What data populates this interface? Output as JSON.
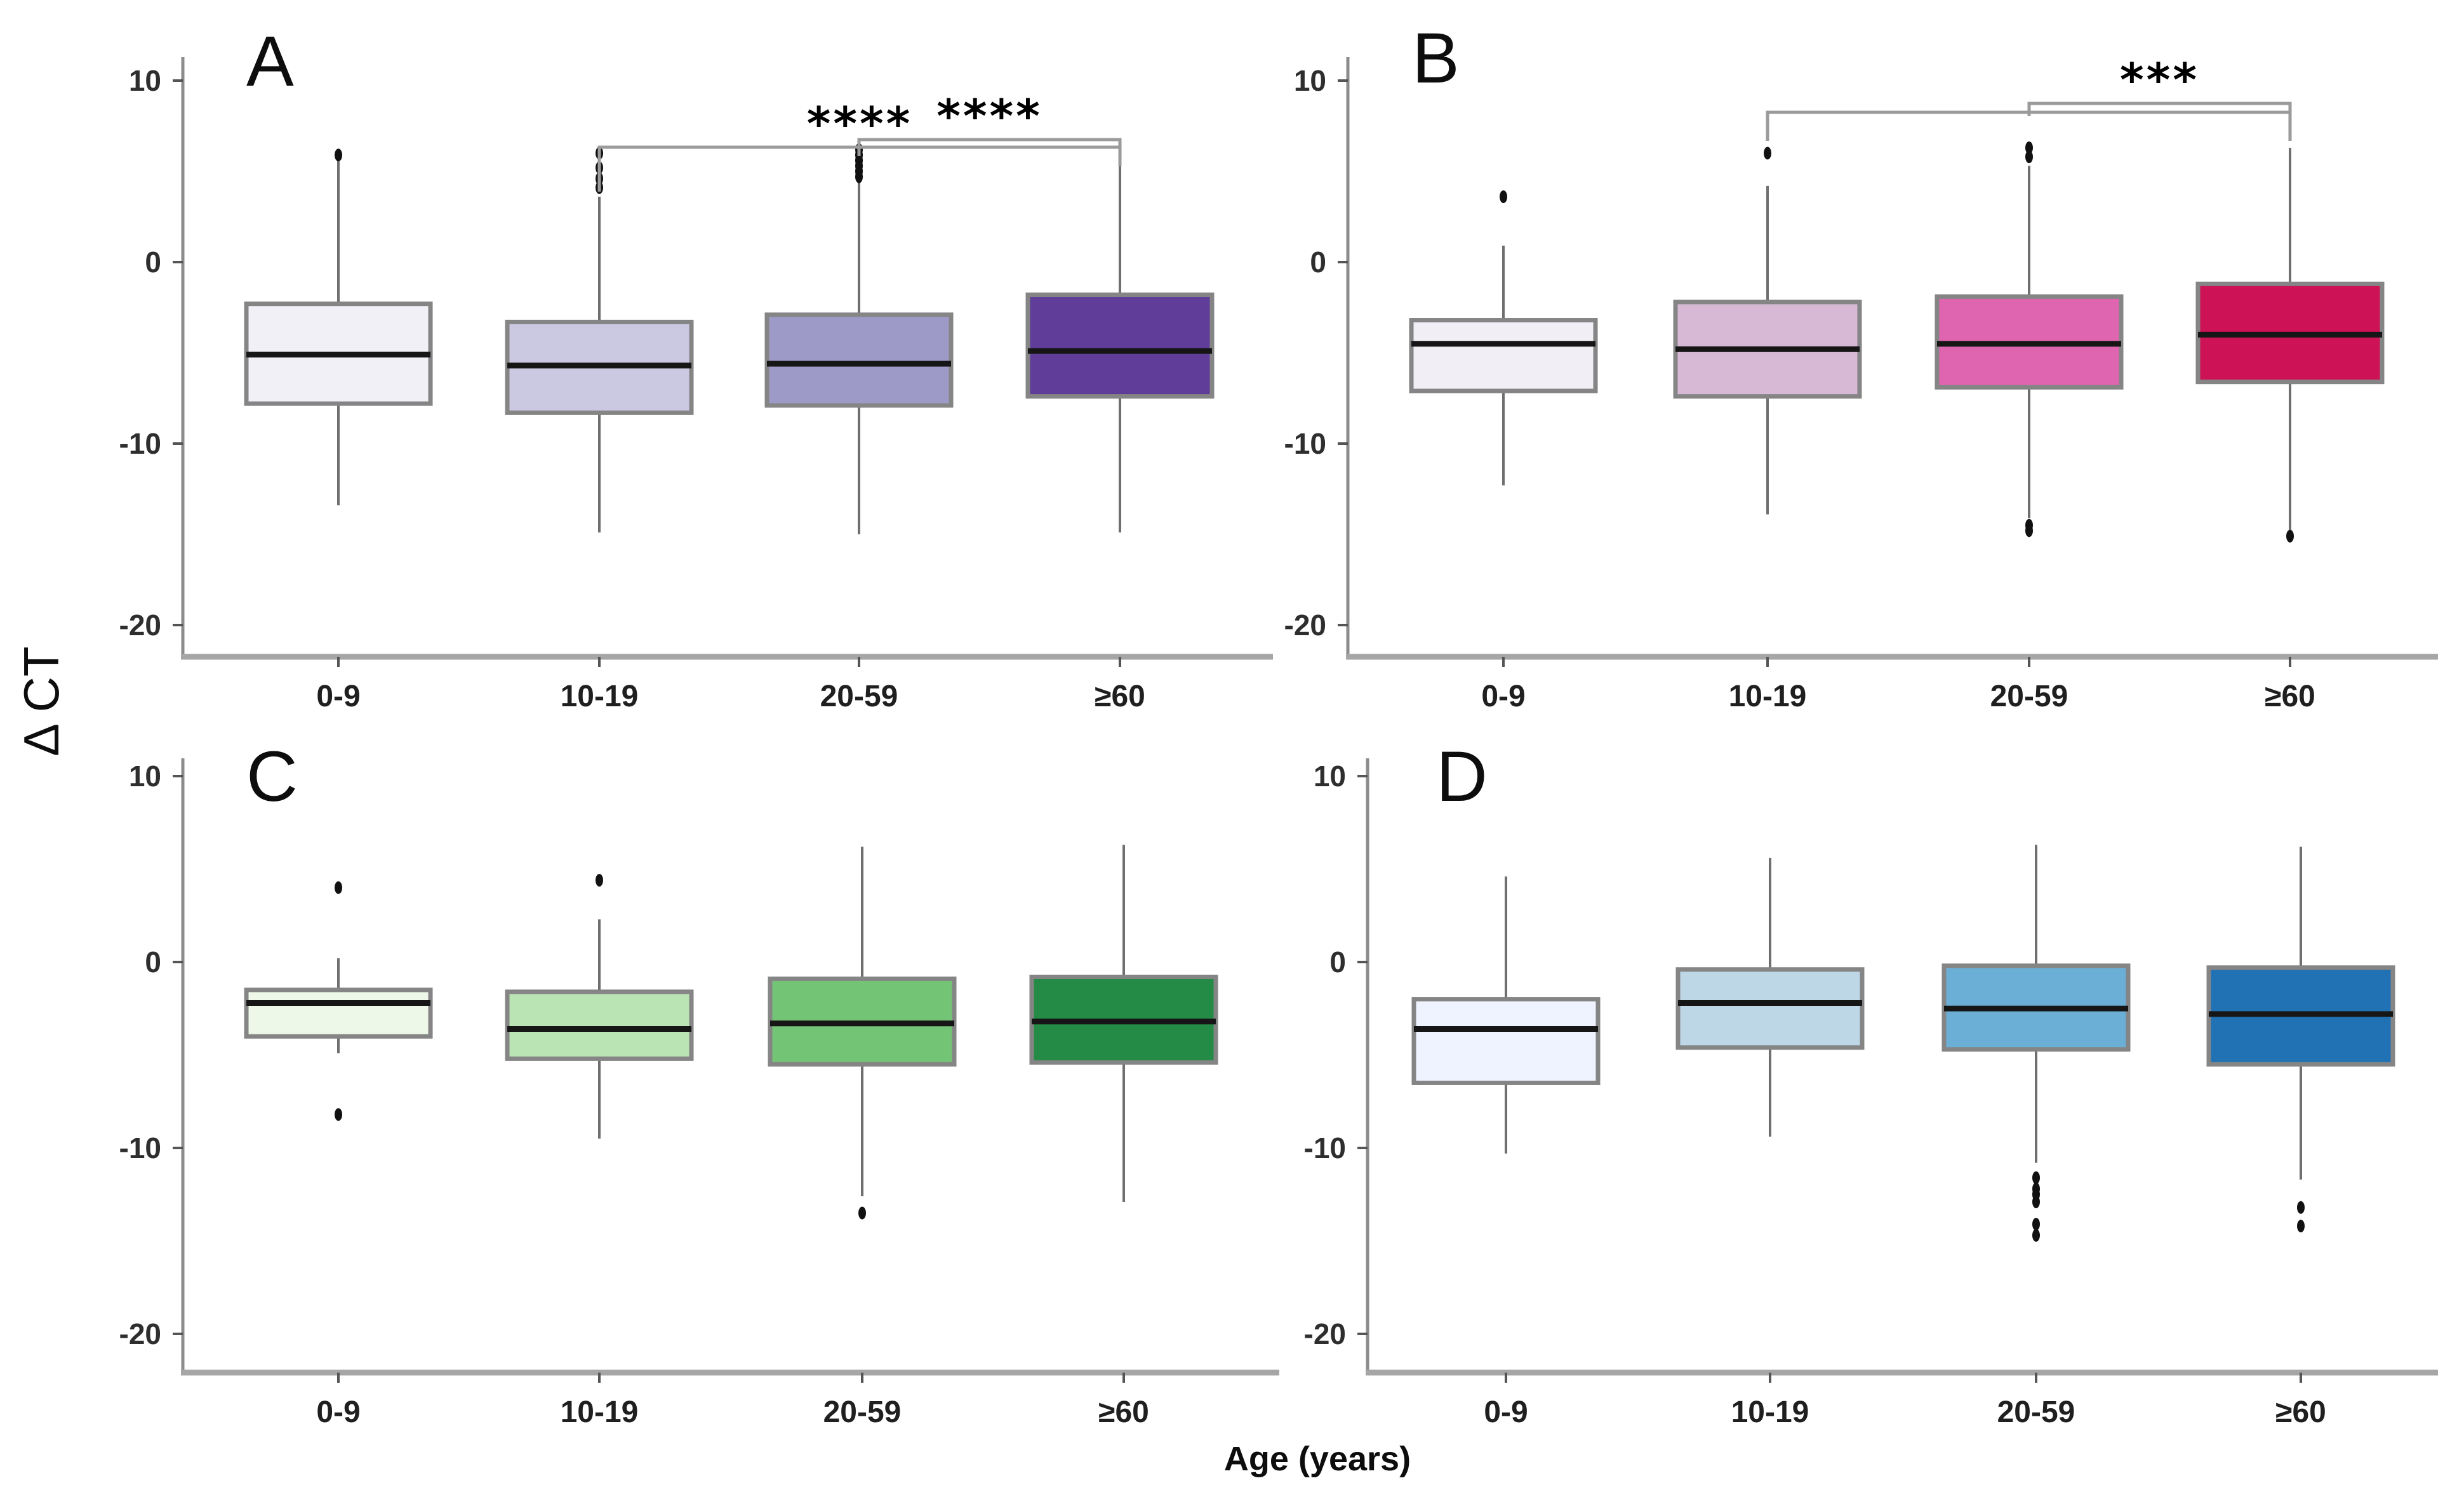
{
  "figure": {
    "ylabel": "Δ CT",
    "xlabel": "Age (years)",
    "y_ticks": [
      10,
      0,
      -10,
      -20
    ],
    "categories": [
      "0-9",
      "10-19",
      "20-59",
      "≥60"
    ]
  },
  "chart_data": [
    {
      "type": "box",
      "panel": "A",
      "ylabel": "Δ CT",
      "xlabel": "Age (years)",
      "ylim": [
        -22,
        12
      ],
      "grid": false,
      "categories": [
        "0-9",
        "10-19",
        "20-59",
        "≥60"
      ],
      "colors": [
        "#f2f0f7",
        "#cbc9e2",
        "#9e9ac8",
        "#5f3d99"
      ],
      "boxes": [
        {
          "category": "0-9",
          "whisker_low": -13.4,
          "q1": -7.8,
          "median": -5.1,
          "q3": -2.3,
          "whisker_high": 5.6,
          "outliers_high": [
            5.9
          ],
          "outliers_low": []
        },
        {
          "category": "10-19",
          "whisker_low": -14.9,
          "q1": -8.3,
          "median": -5.7,
          "q3": -3.3,
          "whisker_high": 3.6,
          "outliers_high": [
            4.1,
            4.6,
            5.2,
            6.0
          ],
          "outliers_low": []
        },
        {
          "category": "20-59",
          "whisker_low": -15.0,
          "q1": -7.9,
          "median": -5.6,
          "q3": -2.9,
          "whisker_high": 4.4,
          "outliers_high": [
            4.7,
            5.0,
            5.3,
            5.6,
            5.9,
            6.2
          ],
          "outliers_low": []
        },
        {
          "category": "≥60",
          "whisker_low": -14.9,
          "q1": -7.4,
          "median": -4.9,
          "q3": -1.8,
          "whisker_high": 6.1,
          "outliers_high": [],
          "outliers_low": []
        }
      ],
      "significance": [
        {
          "from": "10-19",
          "to": "≥60",
          "label": "****"
        },
        {
          "from": "20-59",
          "to": "≥60",
          "label": "****"
        }
      ]
    },
    {
      "type": "box",
      "panel": "B",
      "ylabel": "Δ CT",
      "xlabel": "Age (years)",
      "ylim": [
        -22,
        12
      ],
      "grid": false,
      "categories": [
        "0-9",
        "10-19",
        "20-59",
        "≥60"
      ],
      "colors": [
        "#f1eef6",
        "#d7b9d5",
        "#df65b0",
        "#ce1256"
      ],
      "boxes": [
        {
          "category": "0-9",
          "whisker_low": -12.3,
          "q1": -7.1,
          "median": -4.5,
          "q3": -3.2,
          "whisker_high": 0.9,
          "outliers_high": [
            3.6
          ],
          "outliers_low": []
        },
        {
          "category": "10-19",
          "whisker_low": -13.9,
          "q1": -7.4,
          "median": -4.8,
          "q3": -2.2,
          "whisker_high": 4.2,
          "outliers_high": [
            6.0
          ],
          "outliers_low": []
        },
        {
          "category": "20-59",
          "whisker_low": -14.1,
          "q1": -6.9,
          "median": -4.5,
          "q3": -1.9,
          "whisker_high": 5.3,
          "outliers_high": [
            5.8,
            6.3
          ],
          "outliers_low": [
            -14.5,
            -14.8
          ]
        },
        {
          "category": "≥60",
          "whisker_low": -14.8,
          "q1": -6.6,
          "median": -4.0,
          "q3": -1.2,
          "whisker_high": 6.3,
          "outliers_high": [],
          "outliers_low": [
            -15.1
          ]
        }
      ],
      "significance": [
        {
          "from": "10-19",
          "to": "≥60",
          "label": ""
        },
        {
          "from": "20-59",
          "to": "≥60",
          "label": "***"
        }
      ]
    },
    {
      "type": "box",
      "panel": "C",
      "ylabel": "Δ CT",
      "xlabel": "Age (years)",
      "ylim": [
        -22,
        12
      ],
      "grid": false,
      "categories": [
        "0-9",
        "10-19",
        "20-59",
        "≥60"
      ],
      "colors": [
        "#edf8e9",
        "#bae4b3",
        "#74c476",
        "#238b45"
      ],
      "boxes": [
        {
          "category": "0-9",
          "whisker_low": -4.9,
          "q1": -4.0,
          "median": -2.2,
          "q3": -1.5,
          "whisker_high": 0.2,
          "outliers_high": [
            4.0
          ],
          "outliers_low": [
            -8.2
          ]
        },
        {
          "category": "10-19",
          "whisker_low": -9.5,
          "q1": -5.2,
          "median": -3.6,
          "q3": -1.6,
          "whisker_high": 2.3,
          "outliers_high": [
            4.4
          ],
          "outliers_low": []
        },
        {
          "category": "20-59",
          "whisker_low": -12.6,
          "q1": -5.5,
          "median": -3.3,
          "q3": -0.9,
          "whisker_high": 6.2,
          "outliers_high": [],
          "outliers_low": [
            -13.5
          ]
        },
        {
          "category": "≥60",
          "whisker_low": -12.9,
          "q1": -5.4,
          "median": -3.2,
          "q3": -0.8,
          "whisker_high": 6.3,
          "outliers_high": [],
          "outliers_low": []
        }
      ],
      "significance": []
    },
    {
      "type": "box",
      "panel": "D",
      "ylabel": "Δ CT",
      "xlabel": "Age (years)",
      "ylim": [
        -22,
        12
      ],
      "grid": false,
      "categories": [
        "0-9",
        "10-19",
        "20-59",
        "≥60"
      ],
      "colors": [
        "#eff3ff",
        "#bdd7e7",
        "#6baed6",
        "#2171b5"
      ],
      "boxes": [
        {
          "category": "0-9",
          "whisker_low": -10.3,
          "q1": -6.5,
          "median": -3.6,
          "q3": -2.0,
          "whisker_high": 4.6,
          "outliers_high": [],
          "outliers_low": []
        },
        {
          "category": "10-19",
          "whisker_low": -9.4,
          "q1": -4.6,
          "median": -2.2,
          "q3": -0.4,
          "whisker_high": 5.6,
          "outliers_high": [],
          "outliers_low": []
        },
        {
          "category": "20-59",
          "whisker_low": -10.8,
          "q1": -4.7,
          "median": -2.5,
          "q3": -0.2,
          "whisker_high": 6.3,
          "outliers_high": [],
          "outliers_low": [
            -11.6,
            -12.2,
            -12.5,
            -12.9,
            -14.1,
            -14.7
          ]
        },
        {
          "category": "≥60",
          "whisker_low": -11.7,
          "q1": -5.5,
          "median": -2.8,
          "q3": -0.3,
          "whisker_high": 6.2,
          "outliers_high": [],
          "outliers_low": [
            -13.2,
            -14.2
          ]
        }
      ],
      "significance": []
    }
  ]
}
